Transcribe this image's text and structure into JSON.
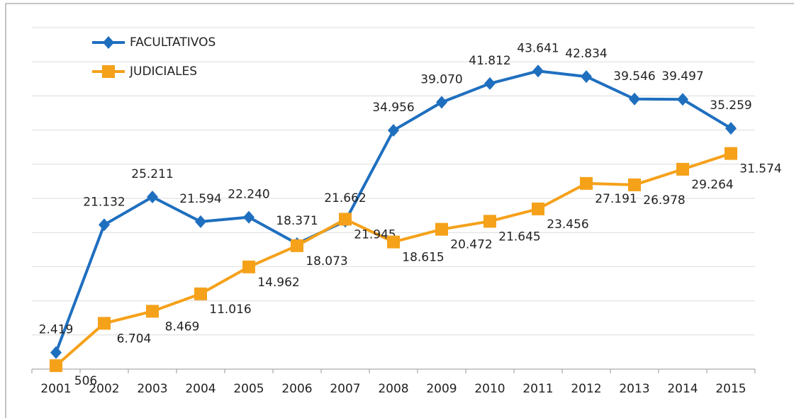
{
  "chart_data": {
    "type": "line",
    "categories": [
      "2001",
      "2002",
      "2003",
      "2004",
      "2005",
      "2006",
      "2007",
      "2008",
      "2009",
      "2010",
      "2011",
      "2012",
      "2013",
      "2014",
      "2015"
    ],
    "series": [
      {
        "name": "FACULTATIVOS",
        "color": "#1f6fbf",
        "marker": "diamond",
        "values": [
          2419,
          21132,
          25211,
          21594,
          22240,
          18371,
          21662,
          34956,
          39070,
          41812,
          43641,
          42834,
          39546,
          39497,
          35259
        ],
        "value_labels": [
          "2.419",
          "21.132",
          "25.211",
          "21.594",
          "22.240",
          "18.371",
          "21.662",
          "34.956",
          "39.070",
          "41.812",
          "43.641",
          "42.834",
          "39.546",
          "39.497",
          "35.259"
        ]
      },
      {
        "name": "JUDICIALES",
        "color": "#f5a11a",
        "marker": "square",
        "values": [
          506,
          6704,
          8469,
          11016,
          14962,
          18073,
          21945,
          18615,
          20472,
          21645,
          23456,
          27191,
          26978,
          29264,
          31574
        ],
        "value_labels": [
          "506",
          "6.704",
          "8.469",
          "11.016",
          "14.962",
          "18.073",
          "21.945",
          "18.615",
          "20.472",
          "21.645",
          "23.456",
          "27.191",
          "26.978",
          "29.264",
          "31.574"
        ]
      }
    ],
    "ylim": [
      0,
      50000
    ],
    "yticks": [
      0,
      5000,
      10000,
      15000,
      20000,
      25000,
      30000,
      35000,
      40000,
      45000,
      50000
    ],
    "grid": true,
    "legend": "top-left"
  }
}
